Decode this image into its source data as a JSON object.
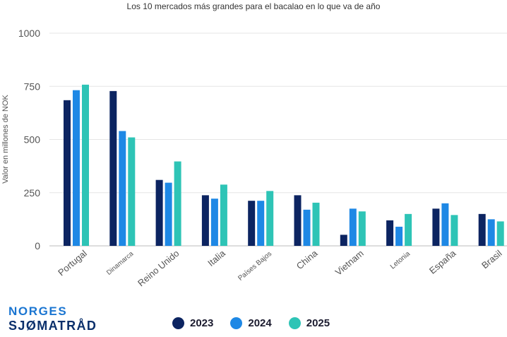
{
  "chart_data": {
    "type": "bar",
    "title": "Los 10 mercados más grandes para el bacalao en lo que va de año",
    "xlabel": "",
    "ylabel": "Valor en millones de NOK",
    "ylim": [
      0,
      1000
    ],
    "yticks": [
      "0",
      "250",
      "500",
      "750",
      "1000"
    ],
    "categories": [
      "Portugal",
      "Dinamarca",
      "Reino Unido",
      "Italia",
      "Países Bajos",
      "China",
      "Vietnam",
      "Letonia",
      "España",
      "Brasil"
    ],
    "series": [
      {
        "name": "2023",
        "color": "#0c2461",
        "values": [
          685,
          728,
          310,
          238,
          212,
          238,
          52,
          120,
          175,
          150
        ]
      },
      {
        "name": "2024",
        "color": "#1e88e5",
        "values": [
          732,
          540,
          297,
          222,
          212,
          170,
          175,
          90,
          200,
          125
        ]
      },
      {
        "name": "2025",
        "color": "#2ec4b6",
        "values": [
          758,
          510,
          397,
          288,
          258,
          203,
          162,
          150,
          145,
          115
        ]
      }
    ],
    "grid": true,
    "legend": "bottom"
  },
  "brand": {
    "line1": "NORGES",
    "line2": "SJØMATRÅD"
  }
}
